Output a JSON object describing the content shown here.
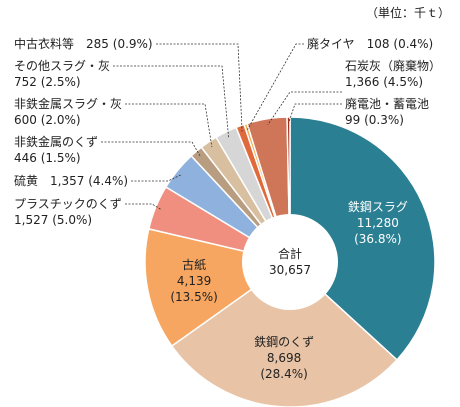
{
  "unit_label": "（単位：千ｔ）",
  "center": {
    "label": "合計",
    "value": "30,657"
  },
  "chart_data": {
    "type": "pie",
    "title": "",
    "unit": "千ｔ",
    "total": 30657,
    "donut": true,
    "slices": [
      {
        "name": "鉄鋼スラグ",
        "value": 11280,
        "value_label": "11,280",
        "percent_label": "(36.8%)",
        "color": "#2a7f92"
      },
      {
        "name": "鉄鋼のくず",
        "value": 8698,
        "value_label": "8,698",
        "percent_label": "(28.4%)",
        "color": "#e8c3a5"
      },
      {
        "name": "古紙",
        "value": 4139,
        "value_label": "4,139",
        "percent_label": "(13.5%)",
        "color": "#f6a660"
      },
      {
        "name": "プラスチックのくず",
        "value": 1527,
        "value_label": "1,527",
        "percent_label": "(5.0%)",
        "color": "#f08f80"
      },
      {
        "name": "硫黄",
        "value": 1357,
        "value_label": "1,357",
        "percent_label": "(4.4%)",
        "color": "#8fb1de"
      },
      {
        "name": "非鉄金属のくず",
        "value": 446,
        "value_label": "446",
        "percent_label": "(1.5%)",
        "color": "#b99d80"
      },
      {
        "name": "非鉄金属スラグ・灰",
        "value": 600,
        "value_label": "600",
        "percent_label": "(2.0%)",
        "color": "#d8bfa0"
      },
      {
        "name": "その他スラグ・灰",
        "value": 752,
        "value_label": "752",
        "percent_label": "(2.5%)",
        "color": "#d6d6d6"
      },
      {
        "name": "中古衣料等",
        "value": 285,
        "value_label": "285",
        "percent_label": "(0.9%)",
        "color": "#e06a3c"
      },
      {
        "name": "廃タイヤ",
        "value": 108,
        "value_label": "108",
        "percent_label": "(0.4%)",
        "color": "#f0b050"
      },
      {
        "name": "石炭灰（廃棄物）",
        "value": 1366,
        "value_label": "1,366",
        "percent_label": "(4.5%)",
        "color": "#cf7558"
      },
      {
        "name": "廃電池・蓄電池",
        "value": 99,
        "value_label": "99",
        "percent_label": "(0.3%)",
        "color": "#a03020"
      }
    ]
  }
}
